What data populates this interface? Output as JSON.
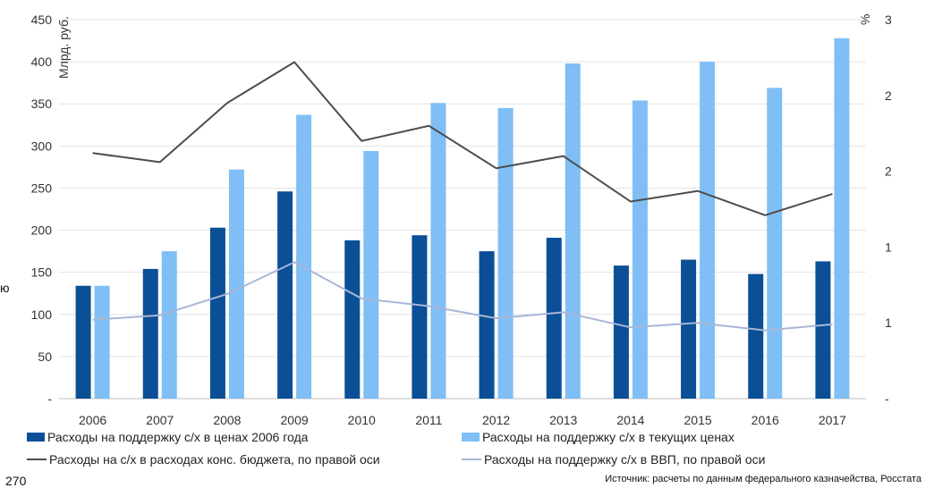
{
  "chart_data": {
    "type": "bar",
    "categories": [
      "2006",
      "2007",
      "2008",
      "2009",
      "2010",
      "2011",
      "2012",
      "2013",
      "2014",
      "2015",
      "2016",
      "2017"
    ],
    "series": [
      {
        "name": "Расходы на поддержку с/х в ценах 2006 года",
        "type": "bar",
        "axis": "left",
        "color": "#0b4f96",
        "values": [
          134,
          154,
          203,
          246,
          188,
          194,
          175,
          191,
          158,
          165,
          148,
          163
        ]
      },
      {
        "name": "Расходы на поддержку с/х в текущих ценах",
        "type": "bar",
        "axis": "left",
        "color": "#7fbff5",
        "values": [
          134,
          175,
          272,
          337,
          294,
          351,
          345,
          398,
          354,
          400,
          369,
          428
        ]
      },
      {
        "name": "Расходы на с/х в расходах конс. бюджета, по правой оси",
        "type": "line",
        "axis": "right",
        "color": "#4d4d4d",
        "values": [
          1.62,
          1.56,
          1.95,
          2.22,
          1.7,
          1.8,
          1.52,
          1.6,
          1.3,
          1.37,
          1.21,
          1.35
        ]
      },
      {
        "name": "Расходы на поддержку с/х в ВВП, по правой оси",
        "type": "line",
        "axis": "right",
        "color": "#a8b6d6",
        "values": [
          0.52,
          0.55,
          0.69,
          0.9,
          0.66,
          0.61,
          0.53,
          0.57,
          0.47,
          0.5,
          0.45,
          0.49
        ]
      }
    ],
    "y_left": {
      "label": "Млрд. руб.",
      "ylim": [
        0,
        450
      ],
      "ticks": [
        "-",
        "50",
        "100",
        "150",
        "200",
        "250",
        "300",
        "350",
        "400",
        "450"
      ]
    },
    "y_right": {
      "label": "%",
      "ylim": [
        0,
        2.5
      ],
      "ticks": [
        "-",
        "1",
        "1",
        "2",
        "2",
        "3"
      ]
    },
    "grid": true,
    "legend_position": "bottom"
  },
  "source_text": "Источник: расчеты по данным федерального казначейства, Росстата",
  "stray_labels": {
    "next_axis_top": "270",
    "cut_text": "ю"
  }
}
